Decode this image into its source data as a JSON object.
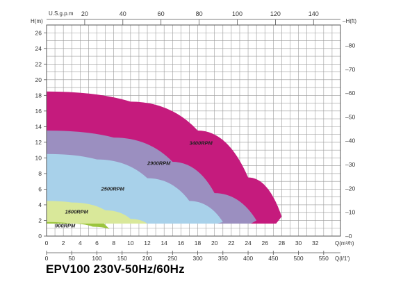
{
  "caption": "EPV100 230V-50Hz/60Hz",
  "chart_data": {
    "type": "area",
    "title": "EPV100 230V-50Hz/60Hz",
    "left_axis_label": "H(m)",
    "right_axis_label": "H(ft)",
    "top_axis_label": "U.S.g.p.m",
    "bottom_axis_label": "Q(m³/h)",
    "bottom2_axis_label": "Q(l/1')",
    "ylim": [
      0,
      27
    ],
    "xlim": [
      0,
      35
    ],
    "left_ticks": [
      "0",
      "2",
      "4",
      "6",
      "8",
      "10",
      "12",
      "14",
      "16",
      "18",
      "20",
      "22",
      "24",
      "26"
    ],
    "right_ticks": [
      "0",
      "10",
      "20",
      "30",
      "40",
      "50",
      "60",
      "70",
      "80"
    ],
    "top_ticks": [
      "20",
      "40",
      "60",
      "80",
      "100",
      "120",
      "140"
    ],
    "bottom_ticks": [
      "0",
      "2",
      "4",
      "6",
      "8",
      "10",
      "12",
      "14",
      "16",
      "18",
      "20",
      "22",
      "24",
      "26",
      "28",
      "30",
      "32"
    ],
    "bottom2_ticks": [
      "0",
      "50",
      "100",
      "150",
      "200",
      "250",
      "300",
      "350",
      "400",
      "450",
      "500",
      "550"
    ],
    "grid": true,
    "series": [
      {
        "name": "3400RPM",
        "color": "#c51b7d",
        "x": [
          0,
          10,
          18,
          24,
          28
        ],
        "y": [
          18.5,
          17.2,
          13.5,
          7.5,
          2.5
        ]
      },
      {
        "name": "2900RPM",
        "color": "#9b8fc0",
        "x": [
          0,
          8,
          15,
          20,
          25
        ],
        "y": [
          13.5,
          12.6,
          9.5,
          5.5,
          2.0
        ]
      },
      {
        "name": "2500RPM",
        "color": "#a8d1ea",
        "x": [
          0,
          6,
          12,
          17,
          21
        ],
        "y": [
          10.5,
          9.8,
          7.4,
          4.5,
          1.8
        ]
      },
      {
        "name": "1500RPM",
        "color": "#d9e89a",
        "x": [
          0,
          3,
          7,
          10,
          12
        ],
        "y": [
          4.5,
          4.3,
          3.3,
          2.2,
          1.6
        ]
      },
      {
        "name": "900RPM",
        "color": "#9bc53d",
        "x": [
          0,
          3,
          5.5,
          7.5
        ],
        "y": [
          1.8,
          1.6,
          1.2,
          0.9
        ]
      }
    ]
  }
}
